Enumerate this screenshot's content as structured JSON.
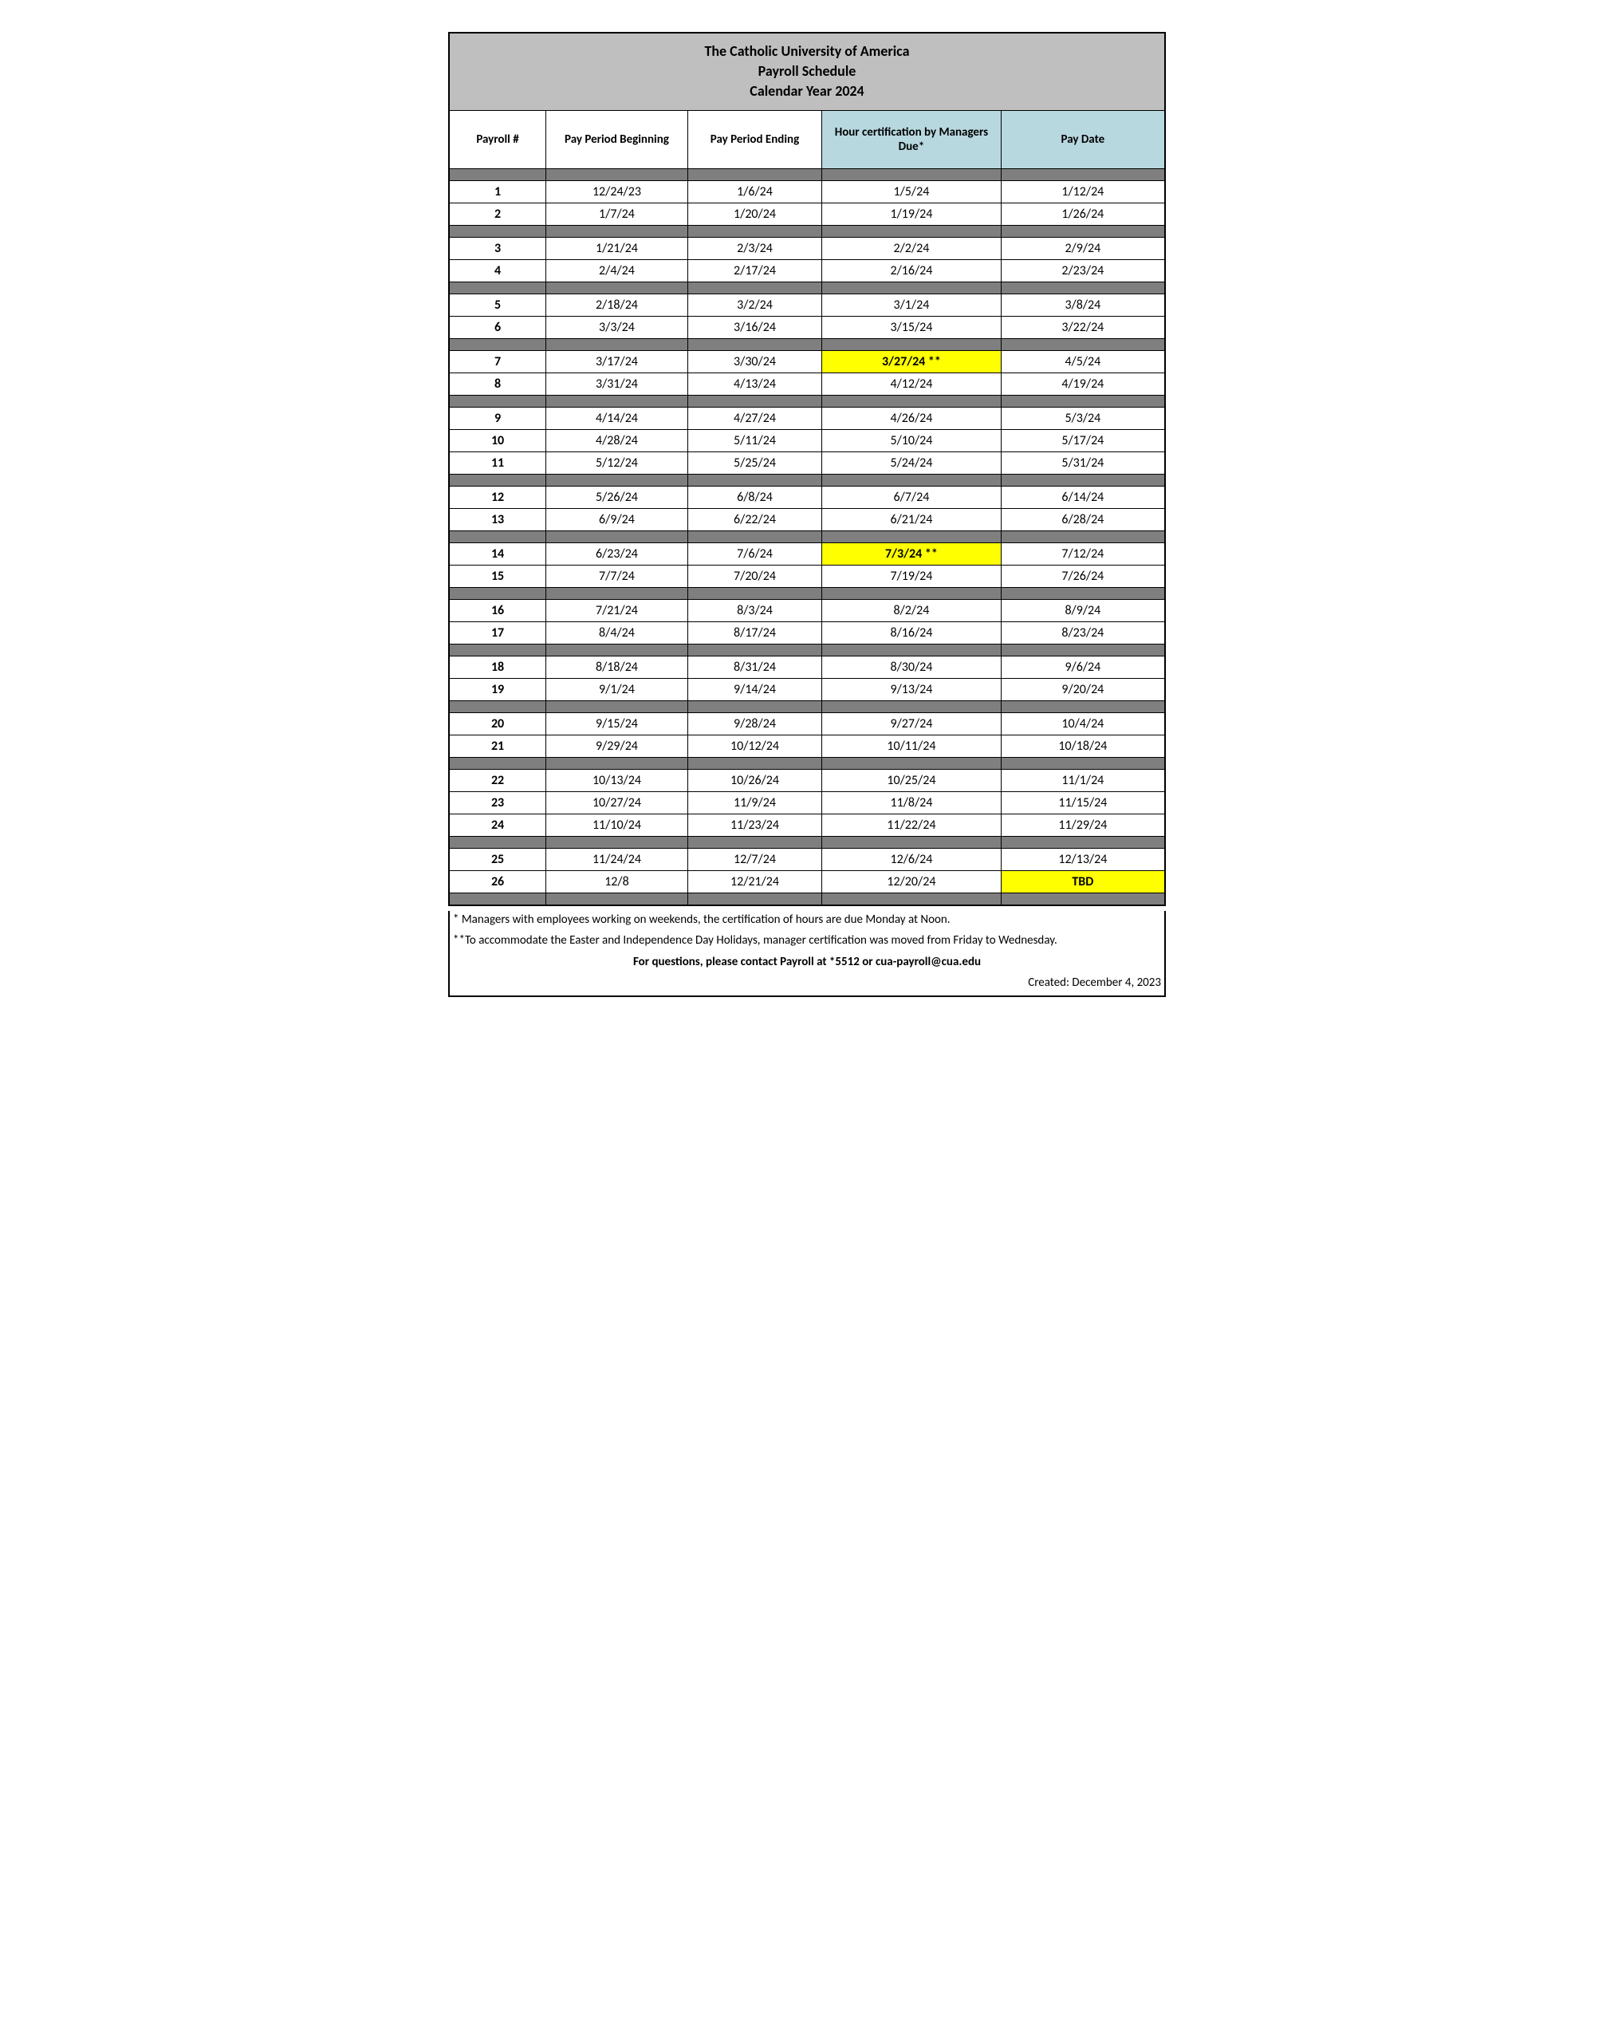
{
  "title": {
    "line1": "The Catholic University of America",
    "line2": "Payroll Schedule",
    "line3": "Calendar Year 2024"
  },
  "columns": {
    "c1": "Payroll  #",
    "c2": "Pay Period Beginning",
    "c3": "Pay Period Ending",
    "c4": "Hour certification by Managers Due*",
    "c5": "Pay Date"
  },
  "groups": [
    [
      {
        "num": "1",
        "begin": "12/24/23",
        "end": "1/6/24",
        "cert": "1/5/24",
        "pay": "1/12/24"
      },
      {
        "num": "2",
        "begin": "1/7/24",
        "end": "1/20/24",
        "cert": "1/19/24",
        "pay": "1/26/24"
      }
    ],
    [
      {
        "num": "3",
        "begin": "1/21/24",
        "end": "2/3/24",
        "cert": "2/2/24",
        "pay": "2/9/24"
      },
      {
        "num": "4",
        "begin": "2/4/24",
        "end": "2/17/24",
        "cert": "2/16/24",
        "pay": "2/23/24"
      }
    ],
    [
      {
        "num": "5",
        "begin": "2/18/24",
        "end": "3/2/24",
        "cert": "3/1/24",
        "pay": "3/8/24"
      },
      {
        "num": "6",
        "begin": "3/3/24",
        "end": "3/16/24",
        "cert": "3/15/24",
        "pay": "3/22/24"
      }
    ],
    [
      {
        "num": "7",
        "begin": "3/17/24",
        "end": "3/30/24",
        "cert": "3/27/24 **",
        "cert_hl": true,
        "pay": "4/5/24"
      },
      {
        "num": "8",
        "begin": "3/31/24",
        "end": "4/13/24",
        "cert": "4/12/24",
        "pay": "4/19/24"
      }
    ],
    [
      {
        "num": "9",
        "begin": "4/14/24",
        "end": "4/27/24",
        "cert": "4/26/24",
        "pay": "5/3/24"
      },
      {
        "num": "10",
        "begin": "4/28/24",
        "end": "5/11/24",
        "cert": "5/10/24",
        "pay": "5/17/24"
      },
      {
        "num": "11",
        "begin": "5/12/24",
        "end": "5/25/24",
        "cert": "5/24/24",
        "pay": "5/31/24"
      }
    ],
    [
      {
        "num": "12",
        "begin": "5/26/24",
        "end": "6/8/24",
        "cert": "6/7/24",
        "pay": "6/14/24"
      },
      {
        "num": "13",
        "begin": "6/9/24",
        "end": "6/22/24",
        "cert": "6/21/24",
        "pay": "6/28/24"
      }
    ],
    [
      {
        "num": "14",
        "begin": "6/23/24",
        "end": "7/6/24",
        "cert": "7/3/24 **",
        "cert_hl": true,
        "pay": "7/12/24"
      },
      {
        "num": "15",
        "begin": "7/7/24",
        "end": "7/20/24",
        "cert": "7/19/24",
        "pay": "7/26/24"
      }
    ],
    [
      {
        "num": "16",
        "begin": "7/21/24",
        "end": "8/3/24",
        "cert": "8/2/24",
        "pay": "8/9/24"
      },
      {
        "num": "17",
        "begin": "8/4/24",
        "end": "8/17/24",
        "cert": "8/16/24",
        "pay": "8/23/24"
      }
    ],
    [
      {
        "num": "18",
        "begin": "8/18/24",
        "end": "8/31/24",
        "cert": "8/30/24",
        "pay": "9/6/24"
      },
      {
        "num": "19",
        "begin": "9/1/24",
        "end": "9/14/24",
        "cert": "9/13/24",
        "pay": "9/20/24"
      }
    ],
    [
      {
        "num": "20",
        "begin": "9/15/24",
        "end": "9/28/24",
        "cert": "9/27/24",
        "pay": "10/4/24"
      },
      {
        "num": "21",
        "begin": "9/29/24",
        "end": "10/12/24",
        "cert": "10/11/24",
        "pay": "10/18/24"
      }
    ],
    [
      {
        "num": "22",
        "begin": "10/13/24",
        "end": "10/26/24",
        "cert": "10/25/24",
        "pay": "11/1/24"
      },
      {
        "num": "23",
        "begin": "10/27/24",
        "end": "11/9/24",
        "cert": "11/8/24",
        "pay": "11/15/24"
      },
      {
        "num": "24",
        "begin": "11/10/24",
        "end": "11/23/24",
        "cert": "11/22/24",
        "pay": "11/29/24"
      }
    ],
    [
      {
        "num": "25",
        "begin": "11/24/24",
        "end": "12/7/24",
        "cert": "12/6/24",
        "pay": "12/13/24"
      },
      {
        "num": "26",
        "begin": "12/8",
        "end": "12/21/24",
        "cert": "12/20/24",
        "pay": "TBD",
        "pay_hl": true
      }
    ]
  ],
  "footnotes": {
    "f1": "*  Managers with employees working on weekends, the certification of hours are due Monday at Noon.",
    "f2": "**To accommodate the Easter and Independence Day Holidays, manager certification was moved from Friday to Wednesday.",
    "contact": "For questions, please contact Payroll at *5512 or cua-payroll@cua.edu",
    "created": "Created: December 4, 2023"
  },
  "styling": {
    "title_bg": "#bfbfbf",
    "header_blue": "#b8d8e0",
    "spacer_bg": "#7f7f7f",
    "highlight_bg": "#ffff00",
    "border_color": "#000000",
    "font_family": "Calibri, Arial, sans-serif",
    "cell_fontsize": 16,
    "header_fontsize": 15,
    "title_fontsize": 18
  }
}
